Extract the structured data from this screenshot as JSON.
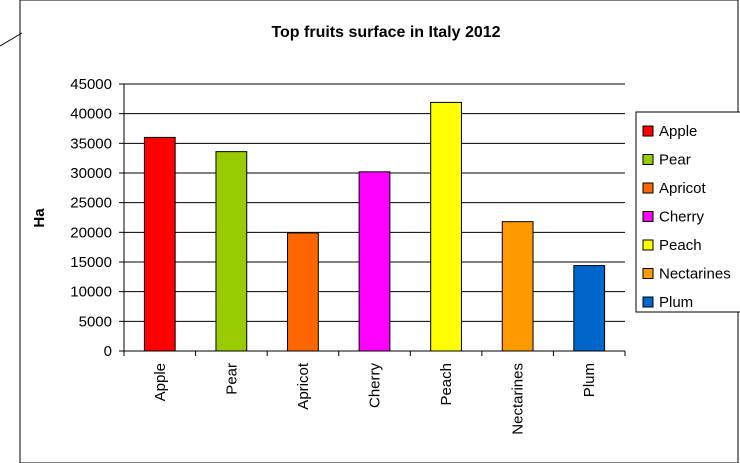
{
  "chart_data": {
    "type": "bar",
    "title": "Top fruits surface in Italy 2012",
    "xlabel": "",
    "ylabel": "Ha",
    "ylim": [
      0,
      45000
    ],
    "ytick_step": 5000,
    "yticks": [
      "0",
      "5000",
      "10000",
      "15000",
      "20000",
      "25000",
      "30000",
      "35000",
      "40000",
      "45000"
    ],
    "grid": true,
    "legend_position": "right",
    "categories": [
      "Apple",
      "Pear",
      "Apricot",
      "Cherry",
      "Peach",
      "Nectarines",
      "Plum"
    ],
    "values": [
      36000,
      33600,
      19900,
      30200,
      41900,
      21800,
      14400
    ],
    "colors": [
      "#ff0000",
      "#99cc00",
      "#ff6600",
      "#ff00ff",
      "#ffff00",
      "#ff9900",
      "#0066cc"
    ]
  }
}
